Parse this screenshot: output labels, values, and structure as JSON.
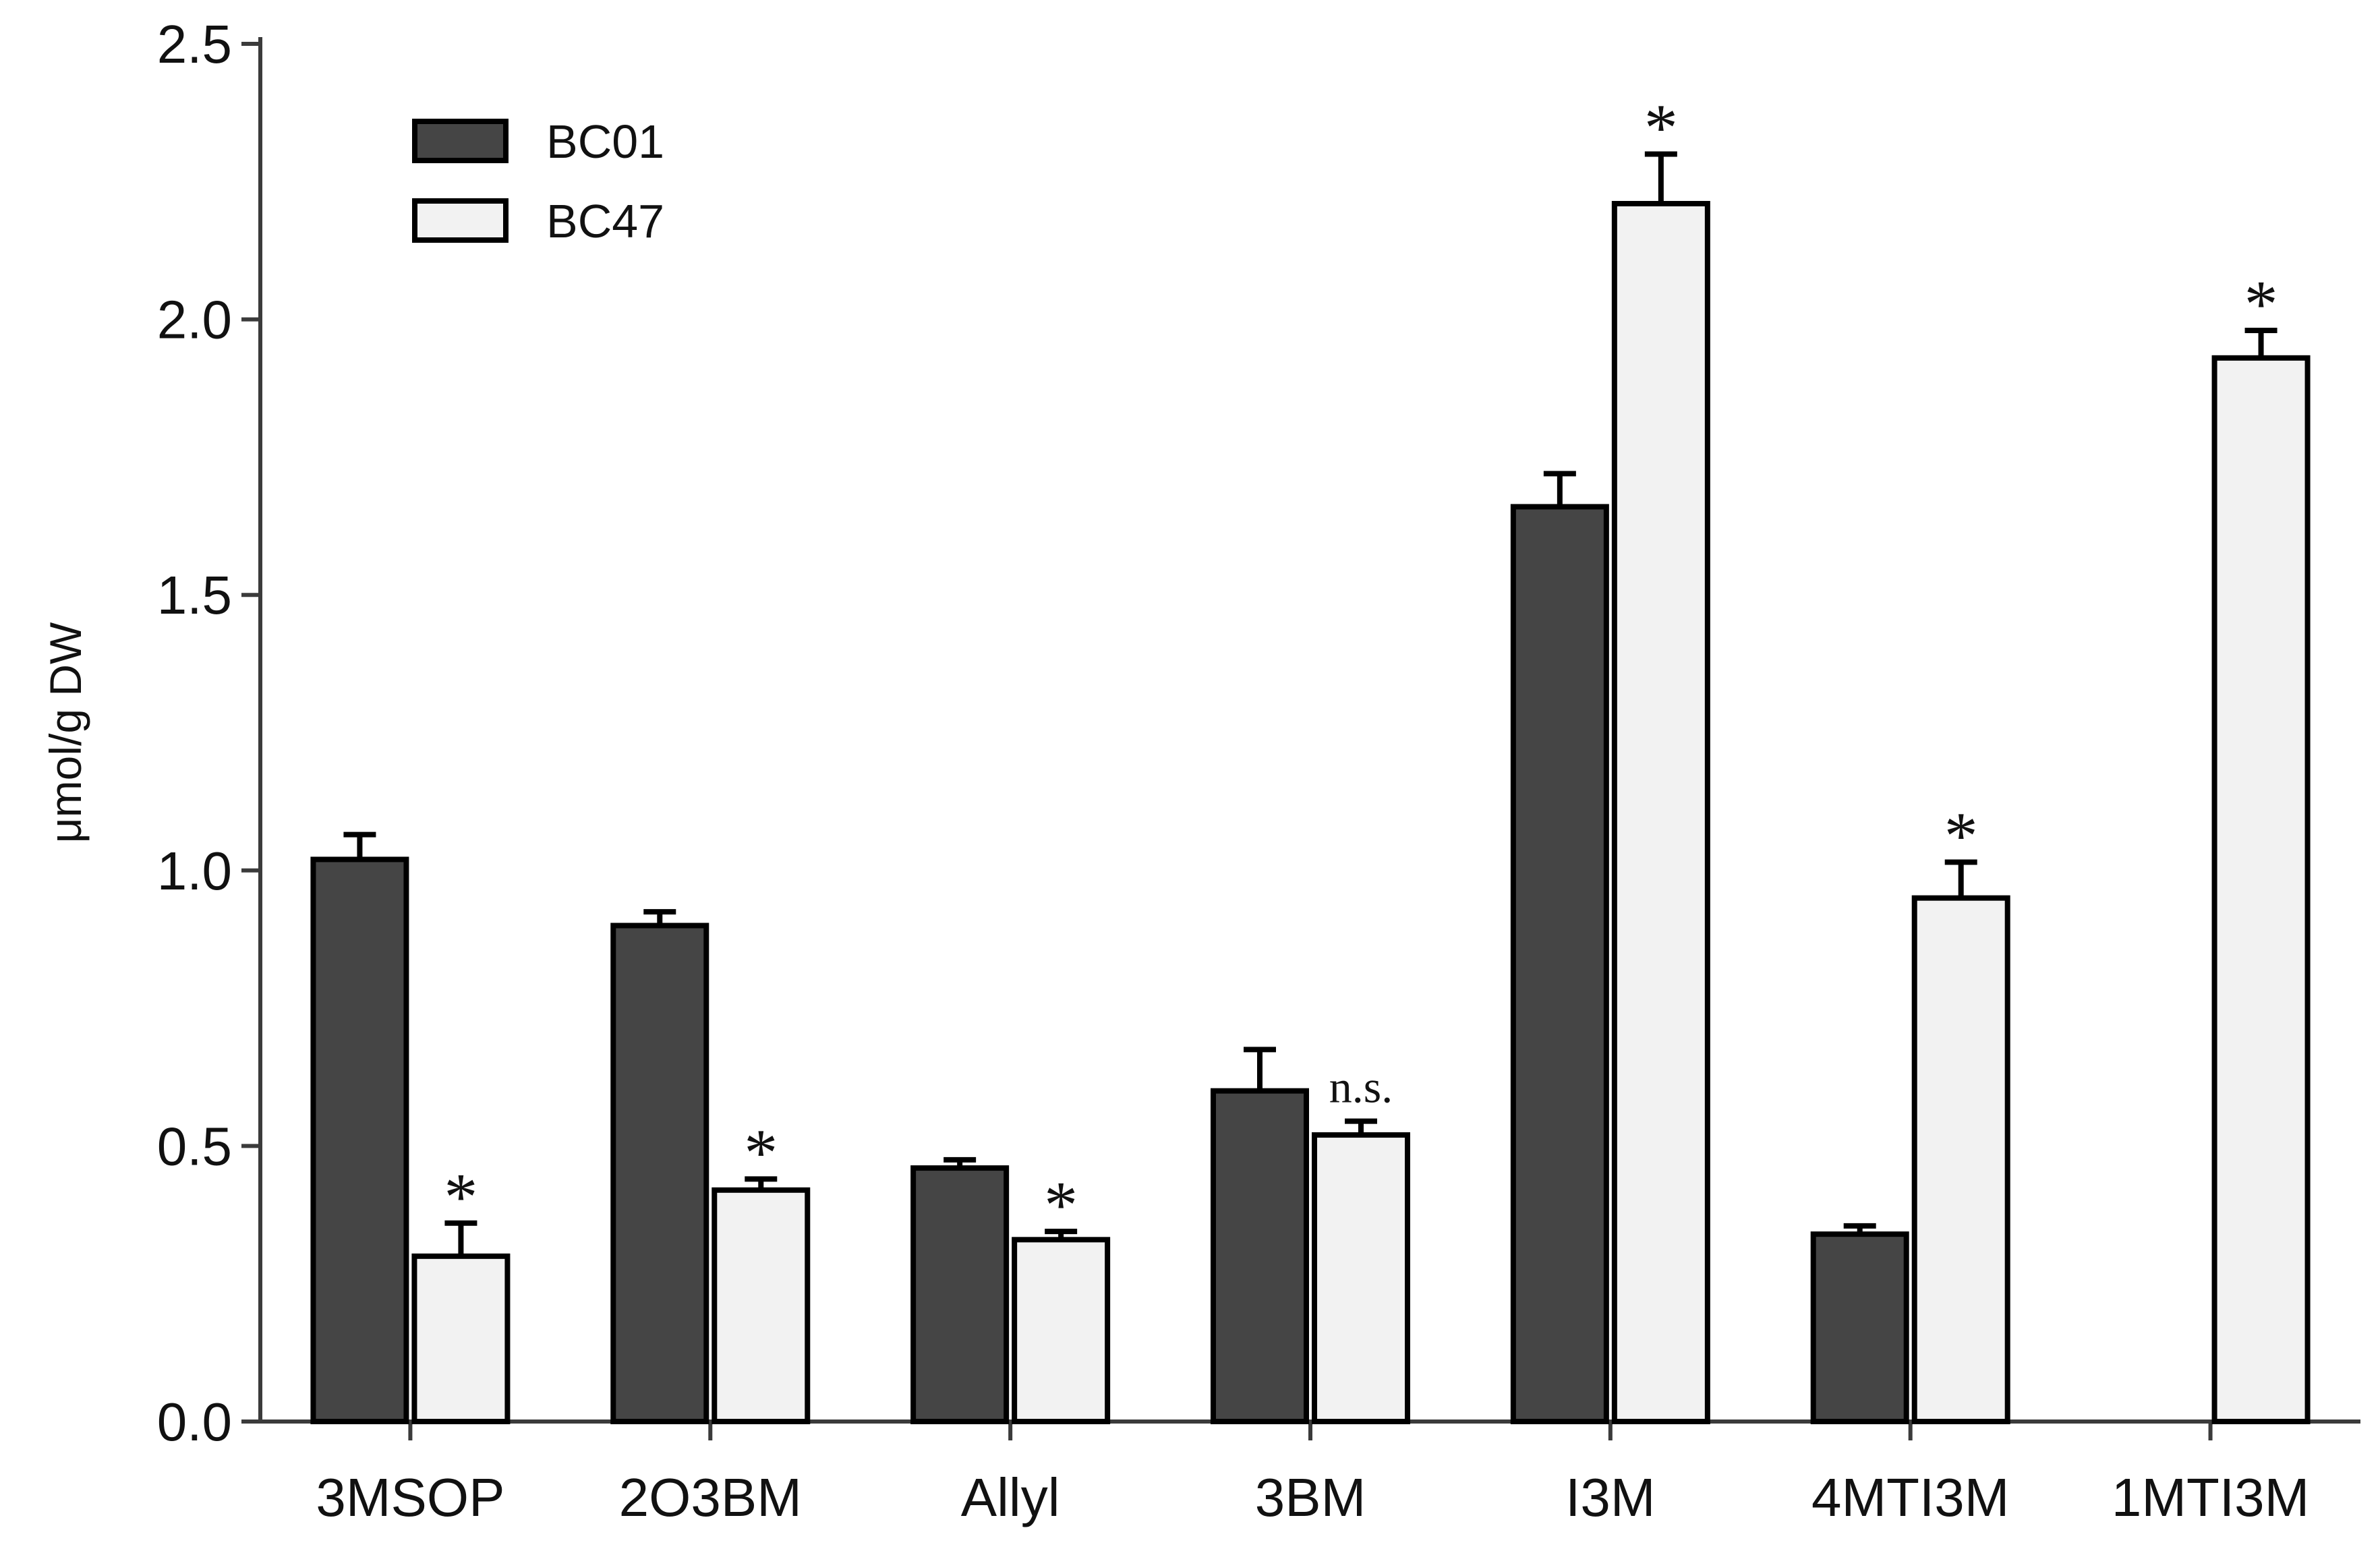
{
  "chart_data": {
    "type": "bar",
    "title": "",
    "xlabel": "",
    "ylabel": "μmol/g DW",
    "ylim": [
      0,
      2.5
    ],
    "yticks": [
      0.0,
      0.5,
      1.0,
      1.5,
      2.0,
      2.5
    ],
    "ytick_labels": [
      "0.0",
      "0.5",
      "1.0",
      "1.5",
      "2.0",
      "2.5"
    ],
    "legend_position": "top-left",
    "categories": [
      "3MSOP",
      "2O3BM",
      "Allyl",
      "3BM",
      "I3M",
      "4MTI3M",
      "1MTI3M"
    ],
    "series": [
      {
        "name": "BC01",
        "color": "#454545",
        "values": [
          1.02,
          0.9,
          0.46,
          0.6,
          1.66,
          0.34,
          null
        ],
        "errors": [
          0.045,
          0.025,
          0.015,
          0.075,
          0.06,
          0.015,
          null
        ]
      },
      {
        "name": "BC47",
        "color": "#f2f2f2",
        "values": [
          0.3,
          0.42,
          0.33,
          0.52,
          2.21,
          0.95,
          1.93
        ],
        "errors": [
          0.06,
          0.02,
          0.015,
          0.025,
          0.09,
          0.065,
          0.05
        ]
      }
    ],
    "annotations": [
      "*",
      "*",
      "*",
      "n.s.",
      "*",
      "*",
      "*"
    ]
  }
}
